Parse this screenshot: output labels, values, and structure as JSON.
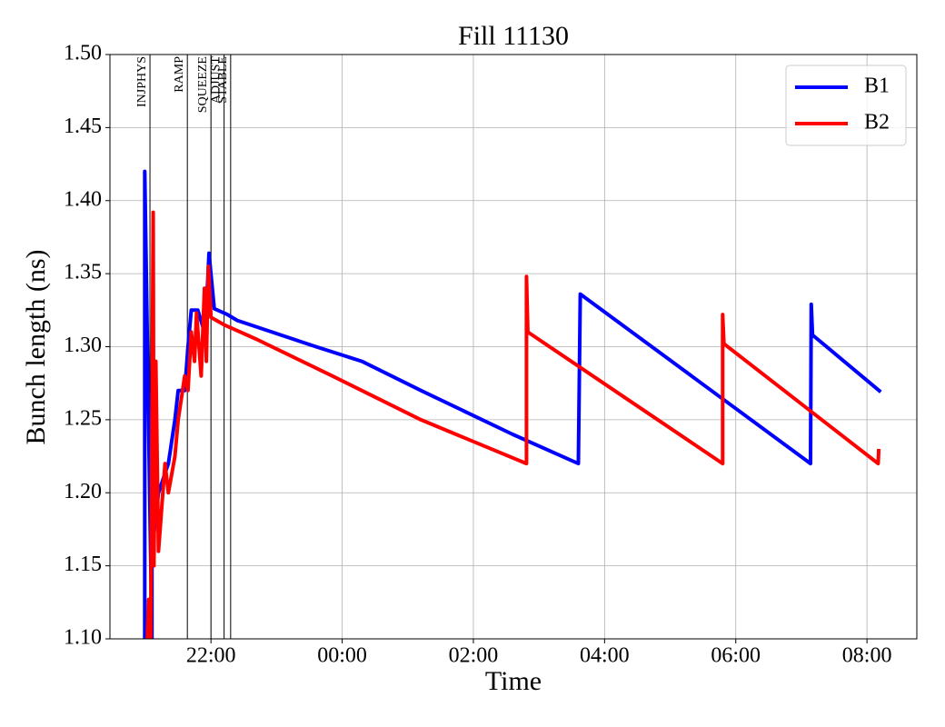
{
  "chart_data": {
    "type": "line",
    "title": "Fill 11130",
    "x_label": "Time",
    "y_label": "Bunch length (ns)",
    "xlim": [
      20.46,
      32.76
    ],
    "xticks": [
      {
        "value": 22,
        "label": "22:00"
      },
      {
        "value": 24,
        "label": "00:00"
      },
      {
        "value": 26,
        "label": "02:00"
      },
      {
        "value": 28,
        "label": "04:00"
      },
      {
        "value": 30,
        "label": "06:00"
      },
      {
        "value": 32,
        "label": "08:00"
      }
    ],
    "ylim": [
      1.1,
      1.5
    ],
    "yticks": [
      {
        "value": 1.1,
        "label": "1.10"
      },
      1.15,
      {
        "value": 1.2,
        "label": "1.20"
      },
      1.25,
      {
        "value": 1.3,
        "label": "1.30"
      },
      1.35,
      {
        "value": 1.4,
        "label": "1.40"
      },
      1.45,
      {
        "value": 1.5,
        "label": "1.50"
      }
    ],
    "grid": true,
    "legend": "upper right",
    "annotations": [
      {
        "x": 21.07,
        "label": "INJPHYS"
      },
      {
        "x": 21.64,
        "label": "RAMP"
      },
      {
        "x": 22.0,
        "label": "SQUEEZE"
      },
      {
        "x": 22.2,
        "label": "ADJUST"
      },
      {
        "x": 22.3,
        "label": "STABLE"
      }
    ],
    "series": [
      {
        "name": "B1",
        "color": "#0000ff",
        "x": [
          20.99,
          20.99,
          21.1,
          21.1,
          21.2,
          21.35,
          21.45,
          21.5,
          21.6,
          21.65,
          21.7,
          21.8,
          21.9,
          21.95,
          21.97,
          22.05,
          22.25,
          22.4,
          23.6,
          24.3,
          25.2,
          26.6,
          27.6,
          27.63,
          31.14,
          31.15,
          31.17,
          32.21
        ],
        "values": [
          1.1,
          1.42,
          1.1,
          1.16,
          1.2,
          1.22,
          1.25,
          1.27,
          1.27,
          1.3,
          1.325,
          1.325,
          1.31,
          1.345,
          1.364,
          1.326,
          1.322,
          1.318,
          1.3,
          1.29,
          1.27,
          1.24,
          1.22,
          1.336,
          1.22,
          1.329,
          1.308,
          1.269
        ]
      },
      {
        "name": "B2",
        "color": "#ff0000",
        "x": [
          21.03,
          21.05,
          21.08,
          21.12,
          21.13,
          21.16,
          21.2,
          21.3,
          21.35,
          21.45,
          21.5,
          21.6,
          21.65,
          21.7,
          21.75,
          21.78,
          21.85,
          21.9,
          21.93,
          21.96,
          22.0,
          22.2,
          22.7,
          23.85,
          25.2,
          26.81,
          26.81,
          26.83,
          29.8,
          29.8,
          29.82,
          32.17,
          32.18
        ],
        "values": [
          1.1,
          1.127,
          1.1,
          1.392,
          1.15,
          1.29,
          1.16,
          1.22,
          1.2,
          1.225,
          1.25,
          1.28,
          1.27,
          1.31,
          1.29,
          1.323,
          1.28,
          1.34,
          1.29,
          1.355,
          1.32,
          1.315,
          1.305,
          1.28,
          1.25,
          1.22,
          1.348,
          1.31,
          1.22,
          1.322,
          1.302,
          1.22,
          1.23
        ]
      }
    ]
  }
}
